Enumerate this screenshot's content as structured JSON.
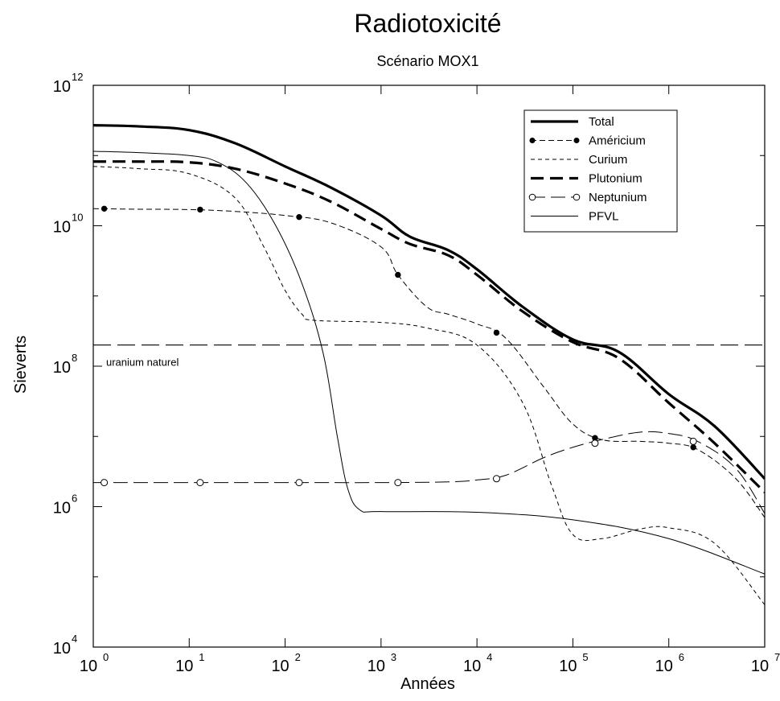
{
  "chart_data": {
    "type": "line",
    "title": "Radiotoxicité",
    "subtitle": "Scénario MOX1",
    "xlabel": "Années",
    "ylabel": "Sieverts",
    "x_scale": "log",
    "y_scale": "log",
    "xlim": [
      1,
      10000000
    ],
    "ylim": [
      10000,
      1000000000000
    ],
    "x_ticks": [
      {
        "base": "10",
        "exp": "0",
        "value": 1
      },
      {
        "base": "10",
        "exp": "1",
        "value": 10
      },
      {
        "base": "10",
        "exp": "2",
        "value": 100
      },
      {
        "base": "10",
        "exp": "3",
        "value": 1000
      },
      {
        "base": "10",
        "exp": "4",
        "value": 10000
      },
      {
        "base": "10",
        "exp": "5",
        "value": 100000
      },
      {
        "base": "10",
        "exp": "6",
        "value": 1000000
      },
      {
        "base": "10",
        "exp": "7",
        "value": 10000000
      }
    ],
    "y_ticks": [
      {
        "base": "10",
        "exp": "4",
        "value": 10000
      },
      {
        "base": "10",
        "exp": "6",
        "value": 1000000
      },
      {
        "base": "10",
        "exp": "8",
        "value": 100000000
      },
      {
        "base": "10",
        "exp": "10",
        "value": 10000000000
      },
      {
        "base": "10",
        "exp": "12",
        "value": 1000000000000
      }
    ],
    "grid": false,
    "legend_position": "top-right",
    "series": [
      {
        "name": "Total",
        "style": "thick-solid",
        "color": "#000000",
        "points": [
          [
            1,
            270000000000.0
          ],
          [
            3,
            260000000000.0
          ],
          [
            10,
            230000000000.0
          ],
          [
            30,
            150000000000.0
          ],
          [
            100,
            70000000000.0
          ],
          [
            300,
            35000000000.0
          ],
          [
            1000,
            14000000000.0
          ],
          [
            2000,
            7000000000.0
          ],
          [
            5000,
            4500000000.0
          ],
          [
            10000,
            2400000000.0
          ],
          [
            30000,
            700000000.0
          ],
          [
            100000,
            240000000.0
          ],
          [
            300000,
            160000000.0
          ],
          [
            1000000,
            40000000.0
          ],
          [
            3000000,
            14000000.0
          ],
          [
            10000000,
            2500000.0
          ]
        ]
      },
      {
        "name": "Américium",
        "style": "dashed-filled-dots",
        "color": "#000000",
        "points": [
          [
            1,
            17500000000.0
          ],
          [
            3,
            17200000000.0
          ],
          [
            10,
            17000000000.0
          ],
          [
            30,
            16000000000.0
          ],
          [
            100,
            14000000000.0
          ],
          [
            300,
            11000000000.0
          ],
          [
            1000,
            5000000000.0
          ],
          [
            1500,
            2000000000.0
          ],
          [
            3000,
            700000000.0
          ],
          [
            5000,
            550000000.0
          ],
          [
            10000,
            400000000.0
          ],
          [
            20000,
            250000000.0
          ],
          [
            50000,
            50000000.0
          ],
          [
            100000,
            15000000.0
          ],
          [
            200000,
            9000000.0
          ],
          [
            500000,
            8500000.0
          ],
          [
            1000000,
            8000000.0
          ],
          [
            2000000,
            6500000.0
          ],
          [
            5000000,
            2500000.0
          ],
          [
            10000000,
            700000.0
          ]
        ],
        "marker_points": [
          [
            1.3,
            17500000000.0
          ],
          [
            13,
            17000000000.0
          ],
          [
            140,
            13300000000.0
          ],
          [
            1500,
            2000000000.0
          ],
          [
            16000,
            300000000.0
          ],
          [
            170000,
            9500000.0
          ],
          [
            1800000,
            7000000.0
          ]
        ]
      },
      {
        "name": "Curium",
        "style": "thin-dashed",
        "color": "#000000",
        "points": [
          [
            1,
            70000000000.0
          ],
          [
            3,
            65000000000.0
          ],
          [
            10,
            55000000000.0
          ],
          [
            30,
            25000000000.0
          ],
          [
            60,
            5000000000.0
          ],
          [
            100,
            1200000000.0
          ],
          [
            150,
            550000000.0
          ],
          [
            200,
            450000000.0
          ],
          [
            1000,
            420000000.0
          ],
          [
            3000,
            350000000.0
          ],
          [
            10000,
            200000000.0
          ],
          [
            30000,
            30000000.0
          ],
          [
            60000,
            2000000.0
          ],
          [
            100000,
            400000.0
          ],
          [
            200000,
            350000.0
          ],
          [
            500000,
            480000.0
          ],
          [
            1000000,
            500000.0
          ],
          [
            3000000,
            300000.0
          ],
          [
            10000000,
            40000.0
          ]
        ]
      },
      {
        "name": "Plutonium",
        "style": "thick-dashed",
        "color": "#000000",
        "points": [
          [
            1,
            82000000000.0
          ],
          [
            3,
            82000000000.0
          ],
          [
            10,
            80000000000.0
          ],
          [
            30,
            65000000000.0
          ],
          [
            100,
            40000000000.0
          ],
          [
            300,
            22000000000.0
          ],
          [
            1000,
            9000000000.0
          ],
          [
            2000,
            5500000000.0
          ],
          [
            5000,
            3800000000.0
          ],
          [
            10000,
            2000000000.0
          ],
          [
            30000,
            600000000.0
          ],
          [
            100000,
            220000000.0
          ],
          [
            300000,
            130000000.0
          ],
          [
            1000000,
            30000000.0
          ],
          [
            3000000,
            8000000.0
          ],
          [
            10000000,
            1600000.0
          ]
        ]
      },
      {
        "name": "Neptunium",
        "style": "long-dashed-open-circles",
        "color": "#000000",
        "points": [
          [
            1,
            2200000.0
          ],
          [
            10,
            2200000.0
          ],
          [
            100,
            2200000.0
          ],
          [
            1000,
            2200000.0
          ],
          [
            5000,
            2250000.0
          ],
          [
            10000,
            2400000.0
          ],
          [
            20000,
            2800000.0
          ],
          [
            50000,
            5000000.0
          ],
          [
            100000,
            7000000.0
          ],
          [
            200000,
            9000000.0
          ],
          [
            500000,
            11500000.0
          ],
          [
            1000000,
            11000000.0
          ],
          [
            2000000,
            8500000.0
          ],
          [
            5000000,
            3500000.0
          ],
          [
            10000000,
            800000.0
          ]
        ],
        "marker_points": [
          [
            1.3,
            2200000.0
          ],
          [
            13,
            2200000.0
          ],
          [
            140,
            2200000.0
          ],
          [
            1500,
            2200000.0
          ],
          [
            16000,
            2500000.0
          ],
          [
            170000,
            8000000.0
          ],
          [
            1800000,
            8500000.0
          ]
        ]
      },
      {
        "name": "PFVL",
        "style": "thin-solid",
        "color": "#000000",
        "points": [
          [
            1,
            115000000000.0
          ],
          [
            3,
            110000000000.0
          ],
          [
            10,
            100000000000.0
          ],
          [
            20,
            80000000000.0
          ],
          [
            40,
            40000000000.0
          ],
          [
            80,
            10000000000.0
          ],
          [
            150,
            1500000000.0
          ],
          [
            250,
            150000000.0
          ],
          [
            350,
            10000000.0
          ],
          [
            450,
            1800000.0
          ],
          [
            600,
            900000.0
          ],
          [
            1000,
            850000.0
          ],
          [
            10000,
            830000.0
          ],
          [
            100000,
            650000.0
          ],
          [
            1000000,
            350000.0
          ],
          [
            10000000,
            110000.0
          ]
        ]
      }
    ],
    "reference_line": {
      "label": "uranium naturel",
      "value": 200000000,
      "style": "long-dashed"
    }
  }
}
